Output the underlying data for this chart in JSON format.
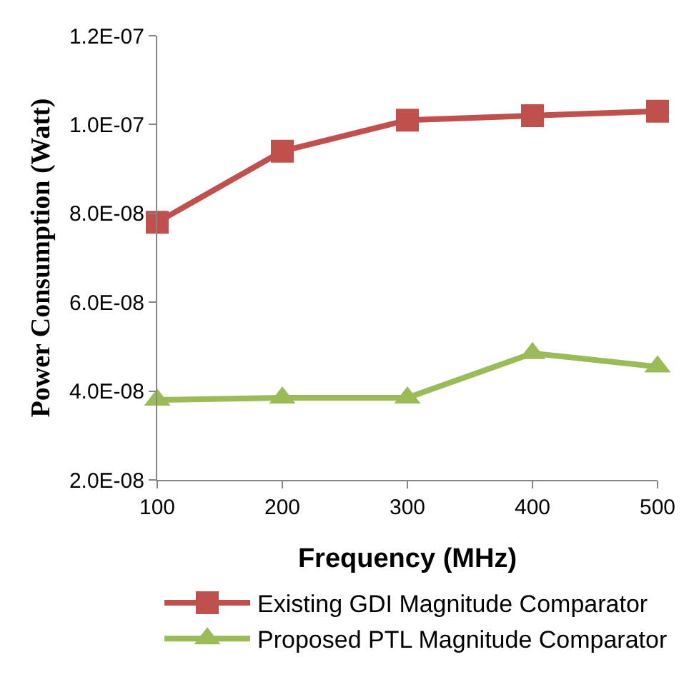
{
  "chart_data": {
    "type": "line",
    "xlabel": "Frequency (MHz)",
    "ylabel": "Power Consumption (Watt)",
    "x": [
      100,
      200,
      300,
      400,
      500
    ],
    "series": [
      {
        "name": "Existing GDI Magnitude Comparator",
        "color": "#c0504d",
        "marker": "square",
        "values": [
          7.8e-08,
          9.4e-08,
          1.01e-07,
          1.02e-07,
          1.03e-07
        ]
      },
      {
        "name": "Proposed PTL Magnitude Comparator",
        "color": "#9bbb59",
        "marker": "triangle",
        "values": [
          3.8e-08,
          3.85e-08,
          3.85e-08,
          4.85e-08,
          4.55e-08
        ]
      }
    ],
    "xlim": [
      100,
      500
    ],
    "xticks": [
      100,
      200,
      300,
      400,
      500
    ],
    "ylim": [
      2e-08,
      1.2e-07
    ],
    "yticks": [
      {
        "value": 2e-08,
        "label": "2.0E-08"
      },
      {
        "value": 4e-08,
        "label": "4.0E-08"
      },
      {
        "value": 6e-08,
        "label": "6.0E-08"
      },
      {
        "value": 8e-08,
        "label": "8.0E-08"
      },
      {
        "value": 1e-07,
        "label": "1.0E-07"
      },
      {
        "value": 1.2e-07,
        "label": "1.2E-07"
      }
    ],
    "grid": false,
    "legend": "bottom",
    "line_style": "solid"
  }
}
